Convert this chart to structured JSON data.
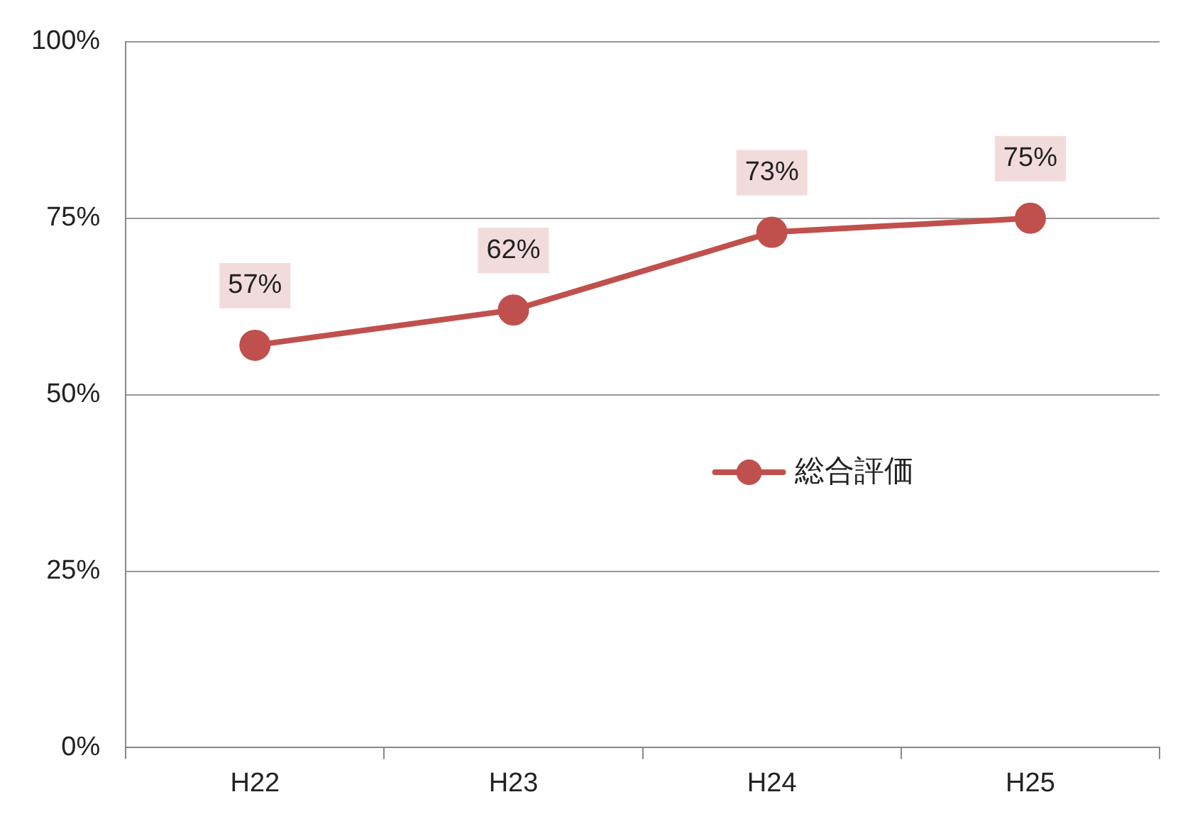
{
  "chart_data": {
    "type": "line",
    "categories": [
      "H22",
      "H23",
      "H24",
      "H25"
    ],
    "series": [
      {
        "name": "総合評価",
        "color": "#c0504d",
        "values": [
          57,
          62,
          73,
          75
        ],
        "value_labels": [
          "57%",
          "62%",
          "73%",
          "75%"
        ]
      }
    ],
    "ylim": [
      0,
      100
    ],
    "yticks": [
      {
        "value": 0,
        "label": "0%"
      },
      {
        "value": 25,
        "label": "25%"
      },
      {
        "value": 50,
        "label": "50%"
      },
      {
        "value": 75,
        "label": "75%"
      },
      {
        "value": 100,
        "label": "100%"
      }
    ],
    "grid": "y",
    "legend": "right",
    "marker": "circle",
    "line_style": "solid"
  }
}
